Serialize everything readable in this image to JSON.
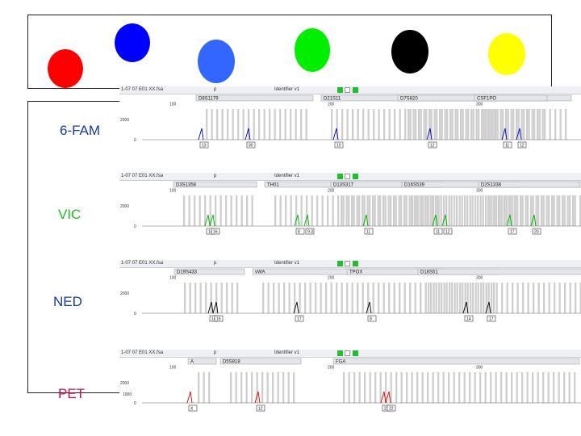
{
  "dyes": [
    {
      "name": "red-dye-dot",
      "color": "#ff0000"
    },
    {
      "name": "blue-dye-dot",
      "color": "#0000ff"
    },
    {
      "name": "light-blue-dye-dot",
      "color": "#3366ff"
    },
    {
      "name": "green-dye-dot",
      "color": "#00ee00"
    },
    {
      "name": "black-dye-dot",
      "color": "#000000"
    },
    {
      "name": "yellow-dye-dot",
      "color": "#ffff00"
    }
  ],
  "channels": [
    {
      "label": "6-FAM",
      "label_color": "#1a3a9e",
      "trace_color": "#0000cc",
      "header_text": "1-07  07  E01  XX.fsa",
      "header_p": "p",
      "header_id": "Identifier v1",
      "scale_top": "2000",
      "ticks": [
        "100",
        "200",
        "300"
      ],
      "markers": [
        "D8S1179",
        "D21S11",
        "D7S820",
        "CSF1PO"
      ],
      "peaks": [
        102,
        160,
        269,
        385,
        478,
        496
      ],
      "allele_labels": [
        "13",
        "30",
        "10",
        "12",
        "11",
        "12"
      ]
    },
    {
      "label": "VIC",
      "label_color": "#22bb22",
      "trace_color": "#00aa00",
      "header_text": "1-07  07  E01  XX.fsa",
      "header_p": "p",
      "header_id": "Identifier v1",
      "scale_top": "2000",
      "ticks": [
        "100",
        "200",
        "300"
      ],
      "markers": [
        "D3S1358",
        "TH01",
        "D13S317",
        "D16S539",
        "D2S1338"
      ],
      "peaks": [
        110,
        116,
        221,
        233,
        306,
        392,
        404,
        484,
        514
      ],
      "allele_labels": [
        "14",
        "16",
        "8",
        "9.3",
        "11",
        "11",
        "12",
        "17",
        "20"
      ]
    },
    {
      "label": "NED",
      "label_color": "#1a3a9e",
      "trace_color": "#000000",
      "header_text": "1-07  07  E01  XX.fsa",
      "header_p": "p",
      "header_id": "Identifier v1",
      "scale_top": "2000",
      "ticks": [
        "100",
        "200",
        "300"
      ],
      "markers": [
        "D19S433",
        "vWA",
        "TPOX",
        "D18S51"
      ],
      "peaks": [
        114,
        120,
        220,
        310,
        430,
        458
      ],
      "allele_labels": [
        "14",
        "15",
        "17",
        "8",
        "14",
        "17"
      ]
    },
    {
      "label": "PET",
      "label_color": "#cc1155",
      "trace_color": "#dd0000",
      "header_text": "1-07  07  E01  XX.fsa",
      "header_p": "p",
      "header_id": "Identifier v1",
      "scale_top": "2000",
      "scale_mid": "1000",
      "ticks": [
        "100",
        "200",
        "300"
      ],
      "markers": [
        "A",
        "D5S818",
        "FGA"
      ],
      "peaks": [
        88,
        172,
        328,
        334
      ],
      "allele_labels": [
        "X",
        "12",
        "21",
        "22"
      ]
    }
  ]
}
